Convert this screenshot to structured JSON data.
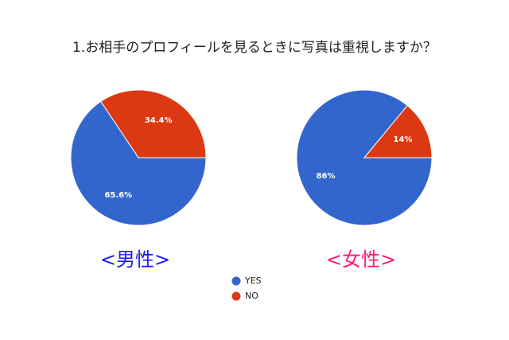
{
  "title": "1.お相手のプロフィールを見るときに写真は重視しますか？",
  "chart_data": [
    {
      "type": "pie",
      "title": "<男性>",
      "title_color": "#1a1aff",
      "categories": [
        "YES",
        "NO"
      ],
      "values": [
        65.6,
        34.4
      ],
      "value_labels": [
        "65.6%",
        "34.4%"
      ],
      "colors": [
        "#3366cc",
        "#dc3912"
      ]
    },
    {
      "type": "pie",
      "title": "<女性>",
      "title_color": "#ff1a75",
      "categories": [
        "YES",
        "NO"
      ],
      "values": [
        86,
        14
      ],
      "value_labels": [
        "86%",
        "14%"
      ],
      "colors": [
        "#3366cc",
        "#dc3912"
      ]
    }
  ]
}
